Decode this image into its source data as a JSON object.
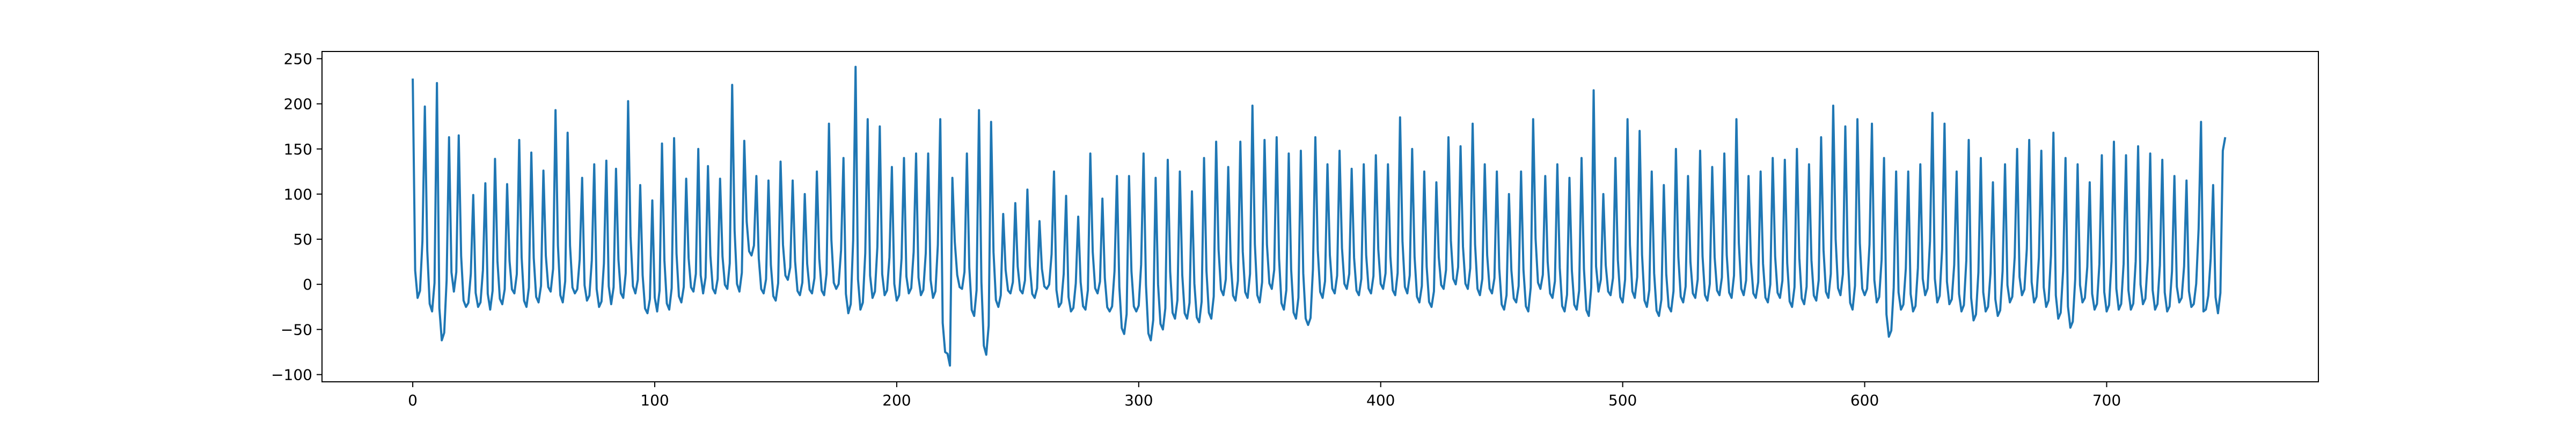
{
  "chart_data": {
    "type": "line",
    "title": "",
    "xlabel": "",
    "ylabel": "",
    "xlim": [
      -37.5,
      787.5
    ],
    "ylim": [
      -108,
      258
    ],
    "xticks": [
      0,
      100,
      200,
      300,
      400,
      500,
      600,
      700
    ],
    "yticks": [
      -100,
      -50,
      0,
      50,
      100,
      150,
      200,
      250
    ],
    "x_count": 750,
    "grid": false,
    "legend": "none",
    "line_color": "#1f77b4",
    "peaks": [
      [
        0,
        228
      ],
      [
        5,
        197
      ],
      [
        10,
        223
      ],
      [
        15,
        163
      ],
      [
        19,
        165
      ],
      [
        25,
        99
      ],
      [
        30,
        112
      ],
      [
        34,
        139
      ],
      [
        39,
        111
      ],
      [
        44,
        160
      ],
      [
        49,
        146
      ],
      [
        54,
        126
      ],
      [
        59,
        193
      ],
      [
        64,
        168
      ],
      [
        70,
        118
      ],
      [
        75,
        133
      ],
      [
        80,
        137
      ],
      [
        84,
        128
      ],
      [
        89,
        203
      ],
      [
        94,
        110
      ],
      [
        99,
        93
      ],
      [
        103,
        156
      ],
      [
        108,
        162
      ],
      [
        113,
        117
      ],
      [
        118,
        150
      ],
      [
        122,
        131
      ],
      [
        127,
        117
      ],
      [
        132,
        221
      ],
      [
        137,
        159
      ],
      [
        142,
        120
      ],
      [
        147,
        115
      ],
      [
        152,
        136
      ],
      [
        157,
        115
      ],
      [
        162,
        100
      ],
      [
        167,
        125
      ],
      [
        172,
        178
      ],
      [
        178,
        140
      ],
      [
        183,
        241
      ],
      [
        188,
        183
      ],
      [
        193,
        175
      ],
      [
        198,
        130
      ],
      [
        203,
        140
      ],
      [
        208,
        145
      ],
      [
        213,
        145
      ],
      [
        218,
        183
      ],
      [
        223,
        118
      ],
      [
        229,
        145
      ],
      [
        234,
        193
      ],
      [
        239,
        180
      ],
      [
        244,
        78
      ],
      [
        249,
        90
      ],
      [
        254,
        105
      ],
      [
        259,
        70
      ],
      [
        265,
        125
      ],
      [
        270,
        98
      ],
      [
        275,
        75
      ],
      [
        280,
        145
      ],
      [
        285,
        95
      ],
      [
        291,
        120
      ],
      [
        296,
        120
      ],
      [
        302,
        145
      ],
      [
        307,
        118
      ],
      [
        312,
        138
      ],
      [
        317,
        125
      ],
      [
        322,
        103
      ],
      [
        327,
        140
      ],
      [
        332,
        158
      ],
      [
        337,
        130
      ],
      [
        342,
        158
      ],
      [
        347,
        198
      ],
      [
        352,
        160
      ],
      [
        357,
        163
      ],
      [
        362,
        145
      ],
      [
        367,
        148
      ],
      [
        373,
        163
      ],
      [
        378,
        133
      ],
      [
        383,
        148
      ],
      [
        388,
        128
      ],
      [
        393,
        133
      ],
      [
        398,
        143
      ],
      [
        403,
        133
      ],
      [
        408,
        185
      ],
      [
        413,
        150
      ],
      [
        418,
        125
      ],
      [
        423,
        113
      ],
      [
        428,
        163
      ],
      [
        433,
        153
      ],
      [
        438,
        178
      ],
      [
        443,
        133
      ],
      [
        448,
        125
      ],
      [
        453,
        100
      ],
      [
        458,
        125
      ],
      [
        463,
        183
      ],
      [
        468,
        120
      ],
      [
        473,
        133
      ],
      [
        478,
        118
      ],
      [
        483,
        140
      ],
      [
        488,
        215
      ],
      [
        492,
        100
      ],
      [
        497,
        140
      ],
      [
        502,
        183
      ],
      [
        507,
        170
      ],
      [
        512,
        125
      ],
      [
        517,
        110
      ],
      [
        522,
        150
      ],
      [
        527,
        120
      ],
      [
        532,
        148
      ],
      [
        537,
        130
      ],
      [
        542,
        145
      ],
      [
        547,
        183
      ],
      [
        552,
        120
      ],
      [
        557,
        125
      ],
      [
        562,
        140
      ],
      [
        567,
        138
      ],
      [
        572,
        150
      ],
      [
        577,
        133
      ],
      [
        582,
        163
      ],
      [
        587,
        198
      ],
      [
        592,
        175
      ],
      [
        597,
        183
      ],
      [
        603,
        178
      ],
      [
        608,
        140
      ],
      [
        613,
        125
      ],
      [
        618,
        125
      ],
      [
        623,
        133
      ],
      [
        628,
        190
      ],
      [
        633,
        178
      ],
      [
        638,
        125
      ],
      [
        643,
        160
      ],
      [
        648,
        140
      ],
      [
        653,
        113
      ],
      [
        658,
        133
      ],
      [
        663,
        150
      ],
      [
        668,
        160
      ],
      [
        673,
        148
      ],
      [
        678,
        168
      ],
      [
        683,
        140
      ],
      [
        688,
        133
      ],
      [
        693,
        113
      ],
      [
        698,
        143
      ],
      [
        703,
        158
      ],
      [
        708,
        143
      ],
      [
        713,
        153
      ],
      [
        718,
        145
      ],
      [
        723,
        138
      ],
      [
        728,
        120
      ],
      [
        733,
        115
      ],
      [
        739,
        180
      ],
      [
        744,
        110
      ],
      [
        748,
        148
      ]
    ],
    "troughs": [
      [
        2,
        -15
      ],
      [
        8,
        -30
      ],
      [
        12,
        -62
      ],
      [
        17,
        -8
      ],
      [
        22,
        -25
      ],
      [
        27,
        -25
      ],
      [
        32,
        -28
      ],
      [
        37,
        -22
      ],
      [
        42,
        -10
      ],
      [
        47,
        -25
      ],
      [
        52,
        -20
      ],
      [
        57,
        -8
      ],
      [
        62,
        -20
      ],
      [
        67,
        -10
      ],
      [
        72,
        -18
      ],
      [
        77,
        -25
      ],
      [
        82,
        -22
      ],
      [
        87,
        -15
      ],
      [
        92,
        -10
      ],
      [
        97,
        -32
      ],
      [
        101,
        -30
      ],
      [
        106,
        -28
      ],
      [
        111,
        -20
      ],
      [
        116,
        -8
      ],
      [
        120,
        -10
      ],
      [
        125,
        -10
      ],
      [
        130,
        -5
      ],
      [
        135,
        -8
      ],
      [
        140,
        32
      ],
      [
        145,
        -10
      ],
      [
        150,
        -18
      ],
      [
        155,
        5
      ],
      [
        160,
        -12
      ],
      [
        165,
        -10
      ],
      [
        170,
        -12
      ],
      [
        175,
        -5
      ],
      [
        180,
        -32
      ],
      [
        185,
        -28
      ],
      [
        190,
        -15
      ],
      [
        195,
        -12
      ],
      [
        200,
        -18
      ],
      [
        205,
        -10
      ],
      [
        210,
        -12
      ],
      [
        215,
        -15
      ],
      [
        220,
        -75
      ],
      [
        222,
        -90
      ],
      [
        227,
        -5
      ],
      [
        232,
        -35
      ],
      [
        237,
        -78
      ],
      [
        242,
        -25
      ],
      [
        247,
        -10
      ],
      [
        252,
        -10
      ],
      [
        257,
        -15
      ],
      [
        262,
        -5
      ],
      [
        267,
        -25
      ],
      [
        272,
        -30
      ],
      [
        278,
        -28
      ],
      [
        283,
        -10
      ],
      [
        288,
        -30
      ],
      [
        294,
        -55
      ],
      [
        299,
        -30
      ],
      [
        305,
        -62
      ],
      [
        310,
        -50
      ],
      [
        315,
        -38
      ],
      [
        320,
        -38
      ],
      [
        325,
        -42
      ],
      [
        330,
        -38
      ],
      [
        335,
        -12
      ],
      [
        340,
        -18
      ],
      [
        345,
        -15
      ],
      [
        350,
        -20
      ],
      [
        355,
        -5
      ],
      [
        360,
        -28
      ],
      [
        365,
        -38
      ],
      [
        370,
        -45
      ],
      [
        376,
        -15
      ],
      [
        381,
        -10
      ],
      [
        386,
        -5
      ],
      [
        391,
        -12
      ],
      [
        396,
        -10
      ],
      [
        401,
        -5
      ],
      [
        406,
        -12
      ],
      [
        411,
        -10
      ],
      [
        416,
        -20
      ],
      [
        421,
        -25
      ],
      [
        426,
        -5
      ],
      [
        431,
        0
      ],
      [
        436,
        -5
      ],
      [
        441,
        -12
      ],
      [
        446,
        -10
      ],
      [
        451,
        -28
      ],
      [
        456,
        -20
      ],
      [
        461,
        -30
      ],
      [
        466,
        -5
      ],
      [
        471,
        -15
      ],
      [
        476,
        -30
      ],
      [
        481,
        -28
      ],
      [
        486,
        -35
      ],
      [
        490,
        -8
      ],
      [
        495,
        -12
      ],
      [
        500,
        -20
      ],
      [
        505,
        -15
      ],
      [
        510,
        -25
      ],
      [
        515,
        -35
      ],
      [
        520,
        -30
      ],
      [
        525,
        -20
      ],
      [
        530,
        -15
      ],
      [
        535,
        -18
      ],
      [
        540,
        -12
      ],
      [
        545,
        -15
      ],
      [
        550,
        -12
      ],
      [
        555,
        -15
      ],
      [
        560,
        -20
      ],
      [
        565,
        -15
      ],
      [
        570,
        -25
      ],
      [
        575,
        -22
      ],
      [
        580,
        -18
      ],
      [
        585,
        -15
      ],
      [
        590,
        -12
      ],
      [
        595,
        -28
      ],
      [
        600,
        -12
      ],
      [
        605,
        -20
      ],
      [
        610,
        -58
      ],
      [
        615,
        -28
      ],
      [
        620,
        -30
      ],
      [
        625,
        -12
      ],
      [
        630,
        -20
      ],
      [
        635,
        -22
      ],
      [
        640,
        -30
      ],
      [
        645,
        -40
      ],
      [
        650,
        -30
      ],
      [
        655,
        -35
      ],
      [
        660,
        -20
      ],
      [
        665,
        -12
      ],
      [
        670,
        -20
      ],
      [
        675,
        -25
      ],
      [
        680,
        -38
      ],
      [
        685,
        -48
      ],
      [
        690,
        -20
      ],
      [
        695,
        -28
      ],
      [
        700,
        -30
      ],
      [
        705,
        -28
      ],
      [
        710,
        -28
      ],
      [
        715,
        -22
      ],
      [
        720,
        -28
      ],
      [
        725,
        -30
      ],
      [
        730,
        -20
      ],
      [
        735,
        -25
      ],
      [
        740,
        -30
      ],
      [
        746,
        -32
      ]
    ]
  }
}
